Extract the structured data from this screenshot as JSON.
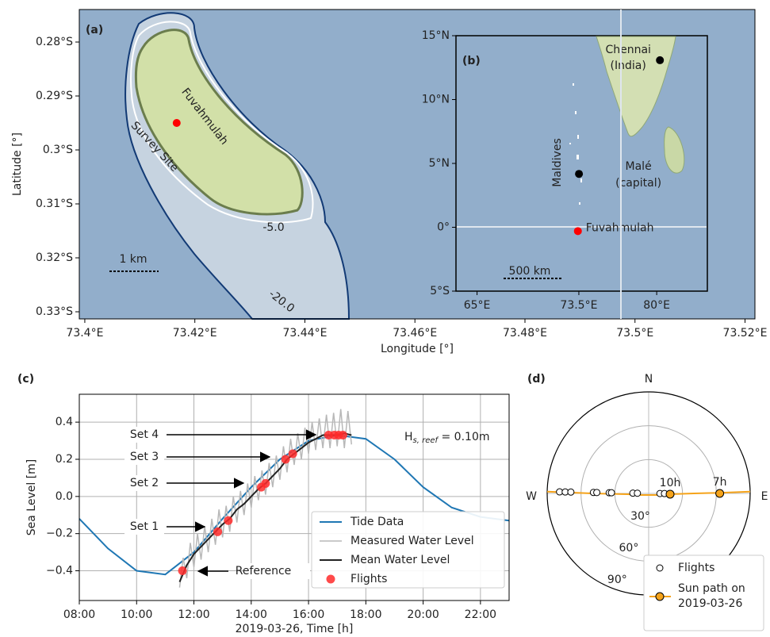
{
  "chart_data": [
    {
      "type": "map",
      "panel_label": "(a)",
      "xlabel": "Longitude [°]",
      "ylabel": "Latitude [°]",
      "xlim": [
        73.399,
        73.5218
      ],
      "ylim": [
        -0.33132,
        -0.27397
      ],
      "xticks": [
        {
          "value": 73.4,
          "label": "73.4°E"
        },
        {
          "value": 73.42,
          "label": "73.42°E"
        },
        {
          "value": 73.44,
          "label": "73.44°E"
        },
        {
          "value": 73.46,
          "label": "73.46°E"
        },
        {
          "value": 73.48,
          "label": "73.48°E"
        },
        {
          "value": 73.5,
          "label": "73.5°E"
        },
        {
          "value": 73.52,
          "label": "73.52°E"
        }
      ],
      "yticks": [
        {
          "value": -0.28,
          "label": "0.28°S"
        },
        {
          "value": -0.29,
          "label": "0.29°S"
        },
        {
          "value": -0.3,
          "label": "0.3°S"
        },
        {
          "value": -0.31,
          "label": "0.31°S"
        },
        {
          "value": -0.32,
          "label": "0.32°S"
        },
        {
          "value": -0.33,
          "label": "0.33°S"
        }
      ],
      "points": [
        {
          "name": "Survey Site",
          "lon": 73.4167,
          "lat": -0.295,
          "color": "#ff0000"
        }
      ],
      "island": "Fuvahmulah",
      "contour_shallow": "-5.0",
      "contour_deep": "-20.0",
      "scale_bar": "1 km"
    },
    {
      "type": "map",
      "panel_label": "(b)",
      "xlim": [
        63.24,
        84.23
      ],
      "ylim": [
        -5,
        15
      ],
      "xticks": [
        {
          "value": 65,
          "label": "65°E"
        },
        {
          "value": 73.5,
          "label": "73.5°E"
        },
        {
          "value": 80,
          "label": "80°E"
        }
      ],
      "yticks": [
        {
          "value": 15,
          "label": "15°N"
        },
        {
          "value": 10,
          "label": "10°N"
        },
        {
          "value": 5,
          "label": "5°N"
        },
        {
          "value": 0,
          "label": "0°"
        },
        {
          "value": -5,
          "label": "5°S"
        }
      ],
      "points": [
        {
          "label_lines": [
            "Chennai",
            "(India)"
          ],
          "lon": 80.27,
          "lat": 13.08,
          "color": "#000000"
        },
        {
          "label_lines": [
            "Malé",
            "(capital)"
          ],
          "lon": 73.51,
          "lat": 4.18,
          "color": "#000000"
        },
        {
          "label_lines": [
            "Fuvahmulah"
          ],
          "lon": 73.42,
          "lat": -0.3,
          "color": "#ff0000"
        }
      ],
      "region_label": "Maldives",
      "scale_bar": "500 km"
    },
    {
      "type": "line",
      "panel_label": "(c)",
      "xlabel": "2019-03-26, Time [h]",
      "ylabel": "Sea Level [m]",
      "xlim": [
        8,
        23
      ],
      "ylim": [
        -0.56,
        0.55
      ],
      "grid": true,
      "legend": "lower right",
      "xticks": [
        {
          "value": 8,
          "label": "08:00"
        },
        {
          "value": 10,
          "label": "10:00"
        },
        {
          "value": 12,
          "label": "12:00"
        },
        {
          "value": 14,
          "label": "14:00"
        },
        {
          "value": 16,
          "label": "16:00"
        },
        {
          "value": 18,
          "label": "18:00"
        },
        {
          "value": 20,
          "label": "20:00"
        },
        {
          "value": 22,
          "label": "22:00"
        }
      ],
      "yticks": [
        {
          "value": -0.4,
          "label": "−0.4"
        },
        {
          "value": -0.2,
          "label": "−0.2"
        },
        {
          "value": 0,
          "label": "0.0"
        },
        0.2,
        0.4
      ],
      "series": [
        {
          "name": "Tide Data",
          "type": "line",
          "color": "#1f77b4",
          "width": 2,
          "x": [
            8,
            9,
            10,
            11,
            12,
            13,
            14,
            15,
            16,
            17,
            18,
            19,
            20,
            21,
            22,
            23
          ],
          "values": [
            -0.12,
            -0.28,
            -0.4,
            -0.42,
            -0.3,
            -0.12,
            0.05,
            0.2,
            0.3,
            0.33,
            0.31,
            0.2,
            0.05,
            -0.06,
            -0.11,
            -0.13
          ]
        },
        {
          "name": "Measured Water Level",
          "type": "line",
          "color": "#b8b8b8",
          "width": 1.5,
          "x": [
            11.5,
            11.625,
            11.75,
            11.875,
            12,
            12.125,
            12.25,
            12.375,
            12.5,
            12.625,
            12.75,
            12.875,
            13,
            13.125,
            13.25,
            13.375,
            13.5,
            13.625,
            13.75,
            13.875,
            14,
            14.125,
            14.25,
            14.375,
            14.5,
            14.625,
            14.75,
            14.875,
            15,
            15.125,
            15.25,
            15.375,
            15.5,
            15.625,
            15.75,
            15.875,
            16,
            16.125,
            16.25,
            16.375,
            16.5,
            16.625,
            16.75,
            16.875,
            17,
            17.125,
            17.25,
            17.375,
            17.5
          ],
          "values": [
            -0.49,
            -0.33,
            -0.44,
            -0.25,
            -0.38,
            -0.2,
            -0.34,
            -0.16,
            -0.3,
            -0.12,
            -0.26,
            -0.07,
            -0.22,
            -0.05,
            -0.19,
            0.0,
            -0.14,
            0.03,
            -0.1,
            0.07,
            -0.06,
            0.11,
            -0.02,
            0.14,
            0.01,
            0.18,
            0.05,
            0.22,
            0.09,
            0.27,
            0.13,
            0.31,
            0.17,
            0.34,
            0.2,
            0.37,
            0.23,
            0.4,
            0.25,
            0.42,
            0.26,
            0.44,
            0.26,
            0.45,
            0.27,
            0.47,
            0.26,
            0.46,
            0.28
          ]
        },
        {
          "name": "Mean Water Level",
          "type": "line",
          "color": "#222222",
          "width": 2,
          "x": [
            11.5,
            11.75,
            12,
            12.25,
            12.5,
            12.75,
            13,
            13.25,
            13.5,
            13.75,
            14,
            14.25,
            14.5,
            14.75,
            15,
            15.25,
            15.5,
            15.75,
            16,
            16.25,
            16.5,
            16.75,
            17,
            17.25,
            17.5
          ],
          "values": [
            -0.46,
            -0.37,
            -0.31,
            -0.27,
            -0.23,
            -0.19,
            -0.15,
            -0.12,
            -0.07,
            -0.04,
            0.0,
            0.04,
            0.07,
            0.11,
            0.15,
            0.2,
            0.23,
            0.26,
            0.29,
            0.31,
            0.33,
            0.33,
            0.33,
            0.34,
            0.33
          ]
        },
        {
          "name": "Flights",
          "type": "scatter",
          "color": "#ff2a2a",
          "x": [
            11.6,
            12.83,
            13.2,
            14.35,
            14.5,
            15.2,
            15.45,
            16.7,
            16.9,
            17.05,
            17.2
          ],
          "values": [
            -0.4,
            -0.19,
            -0.13,
            0.05,
            0.07,
            0.2,
            0.23,
            0.33,
            0.33,
            0.33,
            0.33
          ]
        }
      ],
      "annotations": [
        "Set 1",
        "Set 2",
        "Set 3",
        "Set 4",
        "Reference"
      ],
      "wave_label": [
        "H",
        "s, reef",
        " = 0.10m"
      ]
    },
    {
      "type": "polar",
      "panel_label": "(d)",
      "rlim": [
        0,
        90
      ],
      "rticks": [
        {
          "value": 30,
          "label": "30°"
        },
        {
          "value": 60,
          "label": "60°"
        },
        {
          "value": 90,
          "label": "90°"
        }
      ],
      "direction_labels": [
        "N",
        "E",
        "W"
      ],
      "series": [
        {
          "name": "Flights",
          "type": "scatter",
          "color": "#ffffff",
          "edge": "#000000",
          "azimuth": [
            271,
            271,
            271,
            271,
            271,
            271,
            271,
            271,
            271,
            90.5,
            90.5
          ],
          "zenith": [
            79,
            74,
            69,
            49,
            46,
            35,
            33,
            14,
            10,
            10,
            14
          ]
        },
        {
          "label_lines": [
            "Sun path on",
            "2019-03-26"
          ],
          "type": "line",
          "color": "#f5a31a",
          "azimuth": [
            89,
            89.5,
            90,
            92,
            100,
            260,
            268,
            270,
            271
          ],
          "zenith": [
            90,
            63,
            40,
            19,
            8,
            8,
            19,
            50,
            90
          ],
          "points": {
            "labels": [
              "10h",
              "7h"
            ],
            "azimuth": [
              92,
              90
            ],
            "zenith": [
              19,
              63
            ]
          }
        }
      ]
    }
  ]
}
